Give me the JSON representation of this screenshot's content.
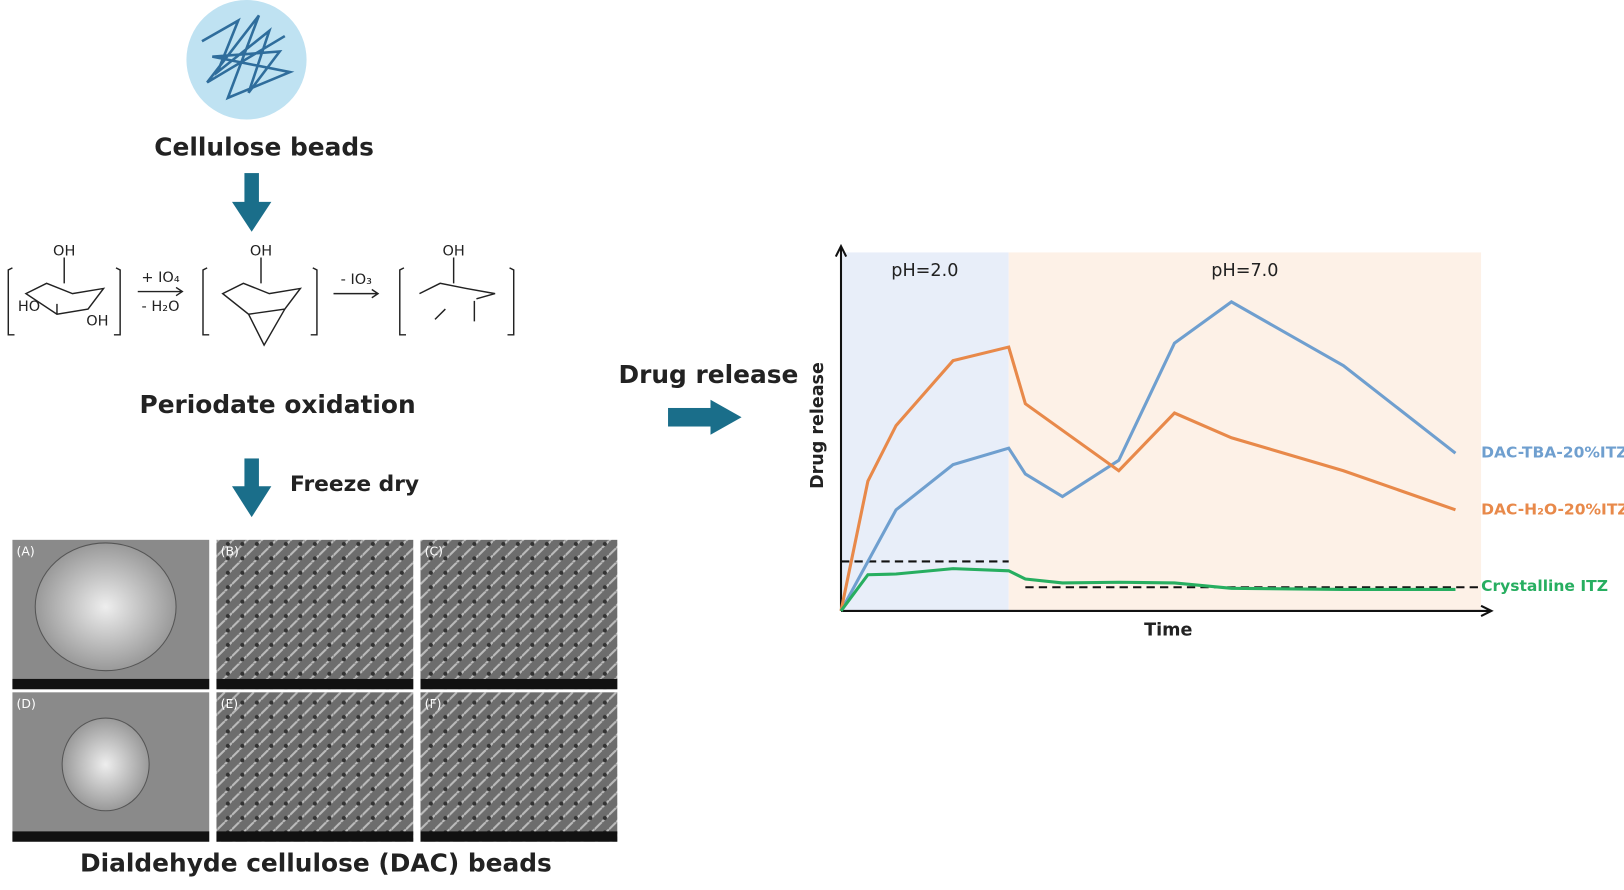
{
  "top": {
    "label": "Cellulose beads"
  },
  "reaction": {
    "oh_labels": [
      "OH",
      "OH",
      "OH"
    ],
    "reagent_1": "+ IO₄",
    "byproduct_1": "- H₂O",
    "reagent_2": "- IO₃",
    "ho_label": "HO",
    "ring_oh": "OH"
  },
  "steps": {
    "oxidation": "Periodate oxidation",
    "freeze": "Freeze dry",
    "drug_release": "Drug release"
  },
  "sem": {
    "panels": [
      "(A)",
      "(B)",
      "(C)",
      "(D)",
      "(E)",
      "(F)"
    ],
    "caption": "Dialdehyde cellulose (DAC) beads"
  },
  "chart": {
    "type": "line",
    "ylabel": "Drug release",
    "xlabel": "Time",
    "xlim": [
      0,
      100
    ],
    "ylim": [
      0,
      100
    ],
    "regions": [
      {
        "label": "pH=2.0",
        "x": [
          0,
          26.2
        ],
        "color": "#e8eef9"
      },
      {
        "label": "pH=7.0",
        "x": [
          26.2,
          100
        ],
        "color": "#fdf1e7"
      }
    ],
    "series": [
      {
        "name": "DAC-TBA-20%ITZ",
        "color": "#6f9fcf",
        "x": [
          0,
          8.6,
          17.5,
          26.2,
          28.8,
          34.6,
          43.4,
          52.1,
          61.0,
          78.5,
          96.0
        ],
        "values": [
          0,
          28.2,
          40.8,
          45.4,
          38.2,
          31.9,
          42.0,
          74.7,
          86.2,
          68.4,
          44.0
        ]
      },
      {
        "name": "DAC-H₂O-20%ITZ",
        "color": "#e8894a",
        "x": [
          0,
          4.2,
          8.6,
          17.5,
          26.2,
          28.8,
          43.4,
          52.1,
          61.0,
          78.5,
          96.0
        ],
        "values": [
          0,
          36.2,
          51.7,
          69.8,
          73.6,
          57.8,
          39.1,
          55.2,
          48.3,
          39.1,
          28.2
        ]
      },
      {
        "name": "Crystalline ITZ",
        "color": "#27ae60",
        "x": [
          0,
          4.2,
          8.6,
          17.5,
          26.2,
          28.8,
          34.6,
          43.4,
          52.1,
          61.0,
          78.5,
          96.0
        ],
        "values": [
          0,
          10.1,
          10.3,
          11.8,
          11.2,
          8.9,
          7.8,
          8.0,
          7.8,
          6.3,
          6.0,
          6.0
        ]
      }
    ],
    "reference_lines": [
      {
        "y": 13.8,
        "x": [
          0,
          26.2
        ]
      },
      {
        "y": 6.6,
        "x": [
          28.8,
          100
        ]
      }
    ]
  }
}
